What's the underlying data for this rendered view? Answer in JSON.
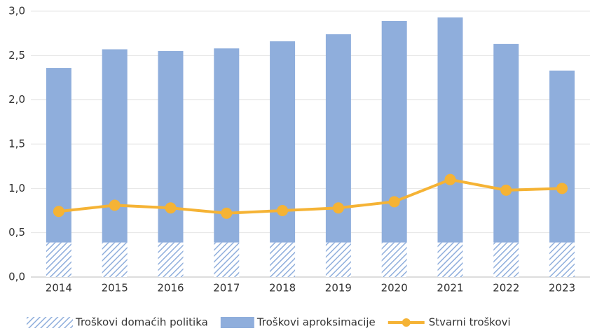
{
  "chart_data": {
    "type": "bar",
    "categories": [
      "2014",
      "2015",
      "2016",
      "2017",
      "2018",
      "2019",
      "2020",
      "2021",
      "2022",
      "2023"
    ],
    "series": [
      {
        "name": "Troškovi domaćih politika",
        "type": "bar",
        "color": "#8faedc",
        "pattern": "hatch",
        "values": [
          0.39,
          0.39,
          0.39,
          0.39,
          0.39,
          0.39,
          0.39,
          0.39,
          0.39,
          0.39
        ]
      },
      {
        "name": "Troškovi aproksimacije",
        "type": "bar",
        "color": "#8faedc",
        "values": [
          1.97,
          2.18,
          2.16,
          2.19,
          2.27,
          2.35,
          2.5,
          2.54,
          2.24,
          1.94
        ]
      },
      {
        "name": "Stvarni troškovi",
        "type": "line",
        "color": "#f5b335",
        "values": [
          0.74,
          0.81,
          0.78,
          0.72,
          0.75,
          0.78,
          0.85,
          1.1,
          0.98,
          1.0
        ]
      }
    ],
    "stacked": true,
    "ylim": [
      0,
      3
    ],
    "yticks": [
      {
        "value": 0,
        "label": "0,0"
      },
      {
        "value": 0.5,
        "label": "0,5"
      },
      {
        "value": 1,
        "label": "1,0"
      },
      {
        "value": 1.5,
        "label": "1,5"
      },
      {
        "value": 2,
        "label": "2,0"
      },
      {
        "value": 2.5,
        "label": "2,5"
      },
      {
        "value": 3,
        "label": "3,0"
      }
    ],
    "grid": true,
    "legend": "bottom"
  }
}
